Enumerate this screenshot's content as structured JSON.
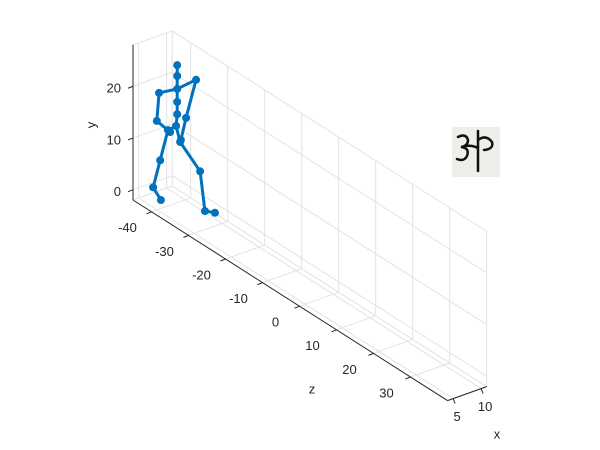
{
  "chart_data": {
    "type": "skeleton3d",
    "xlabel": "x",
    "ylabel": "y",
    "zlabel": "z",
    "xlim": [
      4,
      11
    ],
    "ylim": [
      -2,
      28
    ],
    "zlim": [
      -45,
      40
    ],
    "xticks": [
      5,
      10
    ],
    "yticks": [
      0,
      10,
      20
    ],
    "zticks": [
      -40,
      -30,
      -20,
      -10,
      0,
      10,
      20,
      30
    ],
    "grid": true,
    "series": [
      {
        "color": "#0072bd",
        "x": [
          7,
          7,
          7,
          7,
          7,
          7,
          7,
          7,
          7,
          7,
          7,
          7,
          7,
          7,
          7,
          7,
          7,
          7,
          7,
          7
        ],
        "y": [
          26.3,
          24.2,
          21.7,
          19.2,
          16.8,
          14.4,
          18.7,
          13.0,
          12.5,
          25.8,
          17.2,
          12.3,
          12.6,
          5.8,
          -0.3,
          -1.8,
          11.8,
          8.6,
          1.5,
          2.4
        ],
        "z": [
          -37.6,
          -37.6,
          -37.6,
          -37.6,
          -37.6,
          -37.9,
          -42.5,
          -43.1,
          -39.5,
          -32.5,
          -35.2,
          -36.6,
          -40.1,
          -42.2,
          -44.1,
          -42.0,
          -36.8,
          -31.4,
          -30.1,
          -27.4
        ]
      }
    ]
  }
}
